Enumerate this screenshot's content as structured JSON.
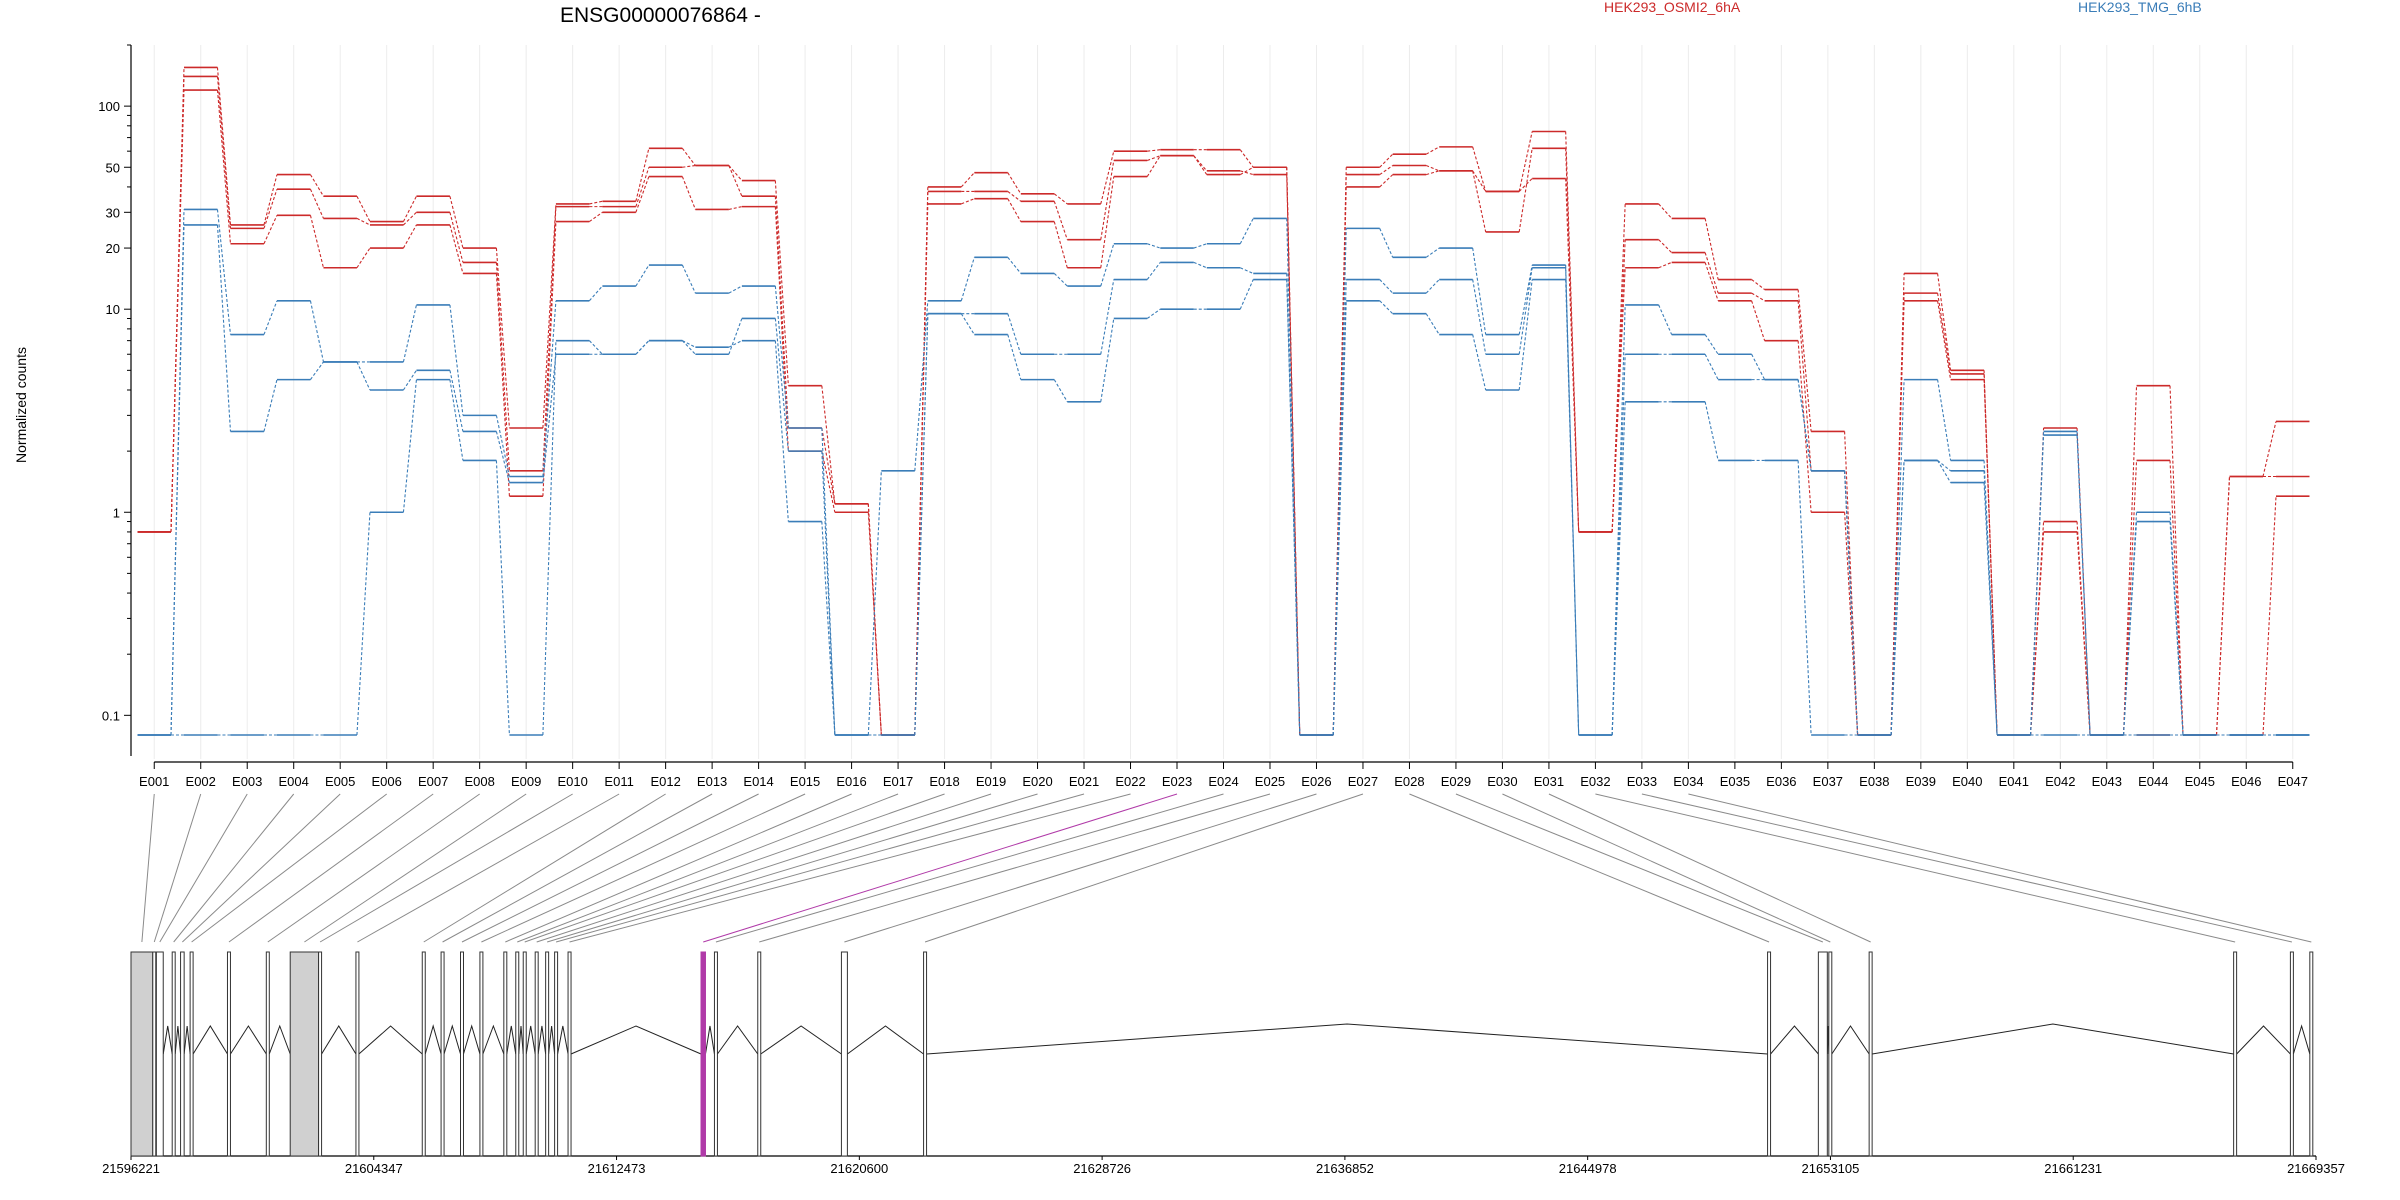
{
  "chart_data": {
    "type": "line",
    "title": "ENSG00000076864 -",
    "xlabel": "",
    "ylabel": "Normalized counts",
    "y_scale": "log",
    "y_ticks": [
      "0.1",
      "1",
      "10",
      "20",
      "30",
      "50",
      "100"
    ],
    "y_tick_values": [
      0.1,
      1,
      10,
      20,
      30,
      50,
      100
    ],
    "ylim": [
      0.08,
      200
    ],
    "legend_position": "top-right",
    "categories": [
      "E001",
      "E002",
      "E003",
      "E004",
      "E005",
      "E006",
      "E007",
      "E008",
      "E009",
      "E010",
      "E011",
      "E012",
      "E013",
      "E014",
      "E015",
      "E016",
      "E017",
      "E018",
      "E019",
      "E020",
      "E021",
      "E022",
      "E023",
      "E024",
      "E025",
      "E026",
      "E027",
      "E028",
      "E029",
      "E030",
      "E031",
      "E032",
      "E033",
      "E034",
      "E035",
      "E036",
      "E037",
      "E038",
      "E039",
      "E040",
      "E041",
      "E042",
      "E043",
      "E044",
      "E045",
      "E046",
      "E047"
    ],
    "groups": [
      {
        "name": "HEK293_OSMI2_6hA",
        "color": "#cc2a2a"
      },
      {
        "name": "HEK293_TMG_6hB",
        "color": "#3a7db8"
      }
    ],
    "series": [
      {
        "group": 0,
        "values": [
          0.8,
          155,
          26,
          46,
          36,
          27,
          36,
          20,
          2.6,
          33,
          34,
          62,
          51,
          43,
          4.2,
          1.1,
          0.08,
          40,
          47,
          37,
          33,
          60,
          61,
          61,
          50,
          0.08,
          50,
          58,
          63,
          38,
          75,
          0.8,
          33,
          28,
          14,
          12.5,
          2.5,
          0.08,
          15,
          5.0,
          0.08,
          2.6,
          0.08,
          4.2,
          0.08,
          1.5,
          2.8
        ]
      },
      {
        "group": 0,
        "values": [
          0.8,
          140,
          25,
          39,
          28,
          26,
          30,
          17,
          1.6,
          32,
          32,
          50,
          51,
          36,
          2.6,
          1.1,
          0.08,
          38,
          38,
          34,
          22,
          54,
          57,
          46,
          50,
          0.08,
          46,
          51,
          48,
          24,
          62,
          0.8,
          22,
          19,
          12,
          11,
          1.6,
          0.08,
          12,
          4.8,
          0.08,
          0.9,
          0.08,
          1.8,
          0.08,
          1.5,
          1.5
        ]
      },
      {
        "group": 0,
        "values": [
          0.8,
          120,
          21,
          29,
          16,
          20,
          26,
          15,
          1.2,
          27,
          30,
          45,
          31,
          32,
          2.0,
          1.0,
          0.08,
          33,
          35,
          27,
          16,
          45,
          57,
          48,
          46,
          0.08,
          40,
          46,
          48,
          38,
          44,
          0.8,
          16,
          17,
          11,
          7,
          1.0,
          0.08,
          11,
          4.5,
          0.08,
          0.8,
          0.08,
          0.08,
          0.08,
          0.08,
          1.2
        ]
      },
      {
        "group": 1,
        "values": [
          0.08,
          31,
          7.5,
          11,
          5.5,
          5.5,
          10.5,
          3,
          1.5,
          11,
          13,
          16.5,
          12,
          13,
          2.6,
          0.08,
          1.6,
          11,
          18,
          15,
          13,
          21,
          20,
          21,
          28,
          0.08,
          25,
          18,
          20,
          7.5,
          16.5,
          0.08,
          10.5,
          7.5,
          6,
          4.5,
          1.6,
          0.08,
          4.5,
          1.8,
          0.08,
          2.5,
          0.08,
          1.0,
          0.08,
          0.08,
          0.08
        ]
      },
      {
        "group": 1,
        "values": [
          0.08,
          26,
          2.5,
          4.5,
          5.5,
          4,
          5,
          2.5,
          1.4,
          6,
          6,
          7,
          6,
          9,
          2.0,
          0.08,
          0.08,
          9.5,
          9.5,
          6,
          6,
          14,
          17,
          16,
          15,
          0.08,
          14,
          12,
          14,
          6,
          16,
          0.08,
          6,
          6,
          4.5,
          4.5,
          1.6,
          0.08,
          1.8,
          1.6,
          0.08,
          2.4,
          0.08,
          0.9,
          0.08,
          0.08,
          0.08
        ]
      },
      {
        "group": 1,
        "values": [
          0.08,
          0.08,
          0.08,
          0.08,
          0.08,
          1.0,
          4.5,
          1.8,
          0.08,
          7,
          6,
          7,
          6.5,
          7,
          0.9,
          0.08,
          0.08,
          9.5,
          7.5,
          4.5,
          3.5,
          9,
          10,
          10,
          14,
          0.08,
          11,
          9.5,
          7.5,
          4,
          14,
          0.08,
          3.5,
          3.5,
          1.8,
          1.8,
          0.08,
          0.08,
          1.8,
          1.4,
          0.08,
          0.08,
          0.08,
          0.08,
          0.08,
          0.08,
          0.08
        ]
      }
    ],
    "gene_model": {
      "coordinate_ticks": [
        "21596221",
        "21604347",
        "21612473",
        "21620600",
        "21628726",
        "21636852",
        "21644978",
        "21653105",
        "21661231",
        "21669357"
      ],
      "coordinate_tick_values": [
        21596221,
        21604347,
        21612473,
        21620600,
        21628726,
        21636852,
        21644978,
        21653105,
        21661231,
        21669357
      ],
      "range": [
        21596221,
        21669357
      ],
      "highlight_color": "#b03aa8",
      "highlight_exon": "E023",
      "exons": [
        {
          "start": 21596221,
          "end": 21596950
        },
        {
          "start": 21596950,
          "end": 21597050
        },
        {
          "start": 21597070,
          "end": 21597300
        },
        {
          "start": 21597600,
          "end": 21597700
        },
        {
          "start": 21597880,
          "end": 21598000
        },
        {
          "start": 21598200,
          "end": 21598300
        },
        {
          "start": 21599450,
          "end": 21599550
        },
        {
          "start": 21600750,
          "end": 21600850
        },
        {
          "start": 21601550,
          "end": 21602500
        },
        {
          "start": 21602500,
          "end": 21602600
        },
        {
          "start": 21603750,
          "end": 21603850
        },
        {
          "start": 21605970,
          "end": 21606070
        },
        {
          "start": 21606600,
          "end": 21606700
        },
        {
          "start": 21607250,
          "end": 21607350
        },
        {
          "start": 21607900,
          "end": 21608000
        },
        {
          "start": 21608700,
          "end": 21608800
        },
        {
          "start": 21609100,
          "end": 21609200
        },
        {
          "start": 21609350,
          "end": 21609450
        },
        {
          "start": 21609750,
          "end": 21609850
        },
        {
          "start": 21610100,
          "end": 21610200
        },
        {
          "start": 21610400,
          "end": 21610500
        },
        {
          "start": 21610850,
          "end": 21610950
        },
        {
          "start": 21615300,
          "end": 21615450
        },
        {
          "start": 21615750,
          "end": 21615850
        },
        {
          "start": 21617200,
          "end": 21617300
        },
        {
          "start": 21620000,
          "end": 21620200
        },
        {
          "start": 21622750,
          "end": 21622850
        },
        {
          "start": 21651000,
          "end": 21651100
        },
        {
          "start": 21652700,
          "end": 21653000
        },
        {
          "start": 21653050,
          "end": 21653150
        },
        {
          "start": 21654400,
          "end": 21654500
        },
        {
          "start": 21666600,
          "end": 21666700
        },
        {
          "start": 21668500,
          "end": 21668600
        },
        {
          "start": 21669150,
          "end": 21669250
        }
      ]
    }
  }
}
